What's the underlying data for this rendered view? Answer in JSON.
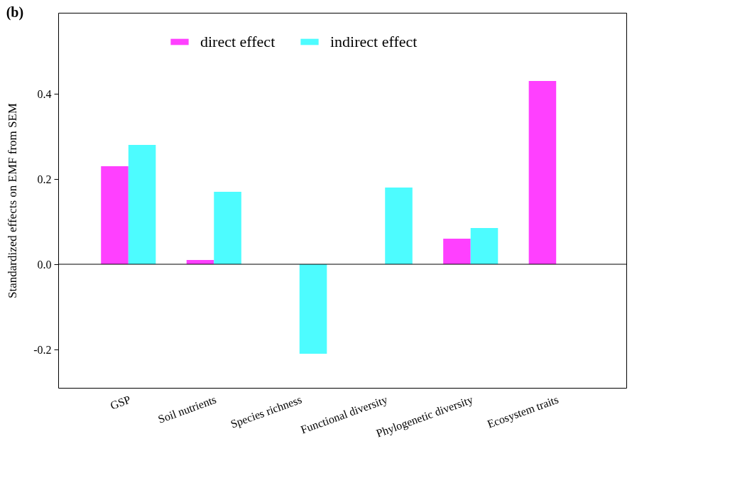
{
  "chart_data": {
    "type": "bar",
    "annotations": [
      "(b)"
    ],
    "ylabel": "Standardized effects on EMF from SEM",
    "categories": [
      "GSP",
      "Soil nutrients",
      "Species richness",
      "Functional diversity",
      "Phylogenetic diversity",
      "Ecosystem traits"
    ],
    "series": [
      {
        "name": "direct effect",
        "color": "#ff40ff",
        "values": [
          0.23,
          0.01,
          null,
          null,
          0.06,
          0.43
        ]
      },
      {
        "name": "indirect effect",
        "color": "#4dfcff",
        "values": [
          0.28,
          0.17,
          -0.21,
          0.18,
          0.085,
          null
        ]
      }
    ],
    "ylim": [
      -0.29,
      0.59
    ],
    "yticks": [
      {
        "value": -0.2,
        "label": "-0.2"
      },
      {
        "value": 0,
        "label": "0.0"
      },
      0.2,
      0.4
    ],
    "ref_lines": [
      {
        "axis": "y",
        "value": 0
      }
    ],
    "legend": "top",
    "grid": false
  }
}
